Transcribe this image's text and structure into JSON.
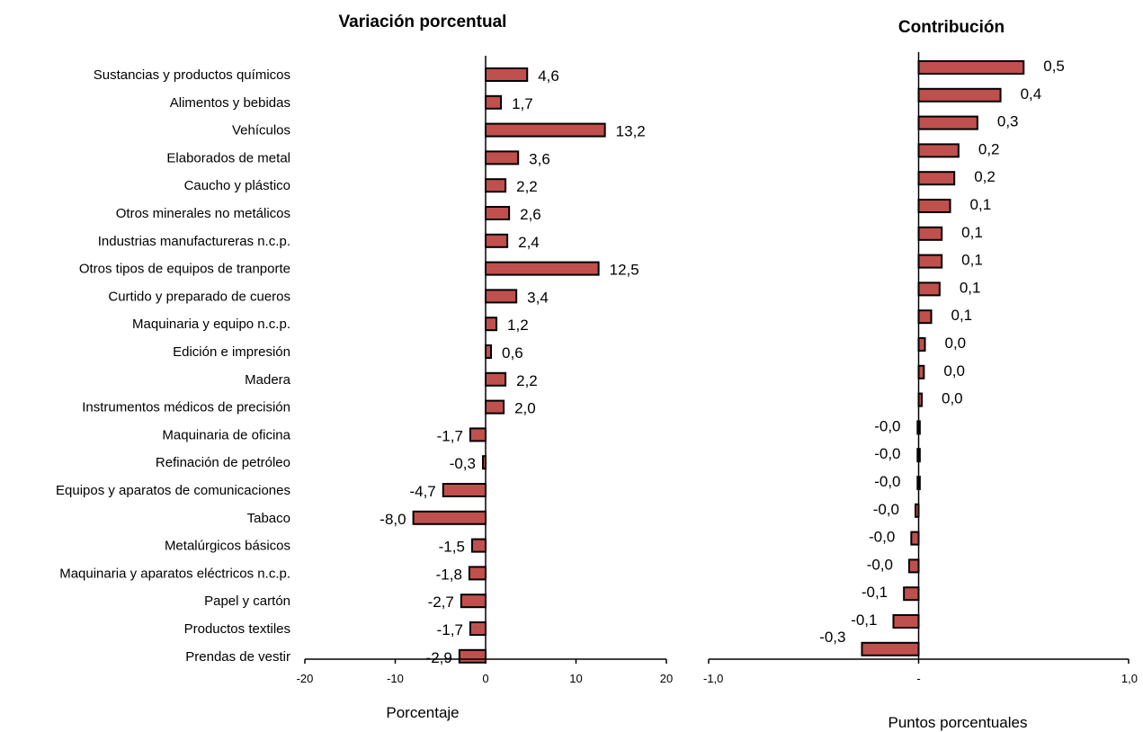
{
  "chart_data": [
    {
      "type": "bar",
      "orientation": "horizontal",
      "title": "Variación porcentual",
      "xlabel": "Porcentaje",
      "ylabel": "",
      "xlim": [
        -20,
        20
      ],
      "x_ticks": [
        "-20",
        "-10",
        "0",
        "10",
        "20"
      ],
      "bar_color": "#c0504d",
      "categories": [
        "Sustancias y productos químicos",
        "Alimentos y bebidas",
        "Vehículos",
        "Elaborados de metal",
        "Caucho y plástico",
        "Otros minerales no metálicos",
        "Industrias manufactureras n.c.p.",
        "Otros tipos de equipos de tranporte",
        "Curtido y preparado de cueros",
        "Maquinaria y equipo n.c.p.",
        "Edición e impresión",
        "Madera",
        "Instrumentos médicos de precisión",
        "Maquinaria de oficina",
        "Refinación de petróleo",
        "Equipos y aparatos de comunicaciones",
        "Tabaco",
        "Metalúrgicos básicos",
        "Maquinaria y aparatos eléctricos n.c.p.",
        "Papel y cartón",
        "Productos textiles",
        "Prendas de vestir"
      ],
      "values": [
        4.6,
        1.7,
        13.2,
        3.6,
        2.2,
        2.6,
        2.4,
        12.5,
        3.4,
        1.2,
        0.6,
        2.2,
        2.0,
        -1.7,
        -0.3,
        -4.7,
        -8.0,
        -1.5,
        -1.8,
        -2.7,
        -1.7,
        -2.9
      ],
      "data_labels": [
        "4,6",
        "1,7",
        "13,2",
        "3,6",
        "2,2",
        "2,6",
        "2,4",
        "12,5",
        "3,4",
        "1,2",
        "0,6",
        "2,2",
        "2,0",
        "-1,7",
        "-0,3",
        "-4,7",
        "-8,0",
        "-1,5",
        "-1,8",
        "-2,7",
        "-1,7",
        "-2,9"
      ]
    },
    {
      "type": "bar",
      "orientation": "horizontal",
      "title": "Contribución",
      "xlabel": "Puntos porcentuales",
      "ylabel": "",
      "xlim": [
        -1.0,
        1.0
      ],
      "x_ticks": [
        "-1,0",
        "-",
        "1,0"
      ],
      "bar_color": "#c0504d",
      "values": [
        0.5,
        0.39,
        0.28,
        0.19,
        0.17,
        0.15,
        0.11,
        0.11,
        0.1,
        0.06,
        0.03,
        0.025,
        0.015,
        -0.005,
        -0.005,
        -0.005,
        -0.015,
        -0.035,
        -0.045,
        -0.07,
        -0.12,
        -0.27
      ],
      "data_labels": [
        "0,5",
        "0,4",
        "0,3",
        "0,2",
        "0,2",
        "0,1",
        "0,1",
        "0,1",
        "0,1",
        "0,1",
        "0,0",
        "0,0",
        "0,0",
        "-0,0",
        "-0,0",
        "-0,0",
        "-0,0",
        "-0,0",
        "-0,0",
        "-0,1",
        "-0,1",
        "-0,3"
      ]
    }
  ]
}
